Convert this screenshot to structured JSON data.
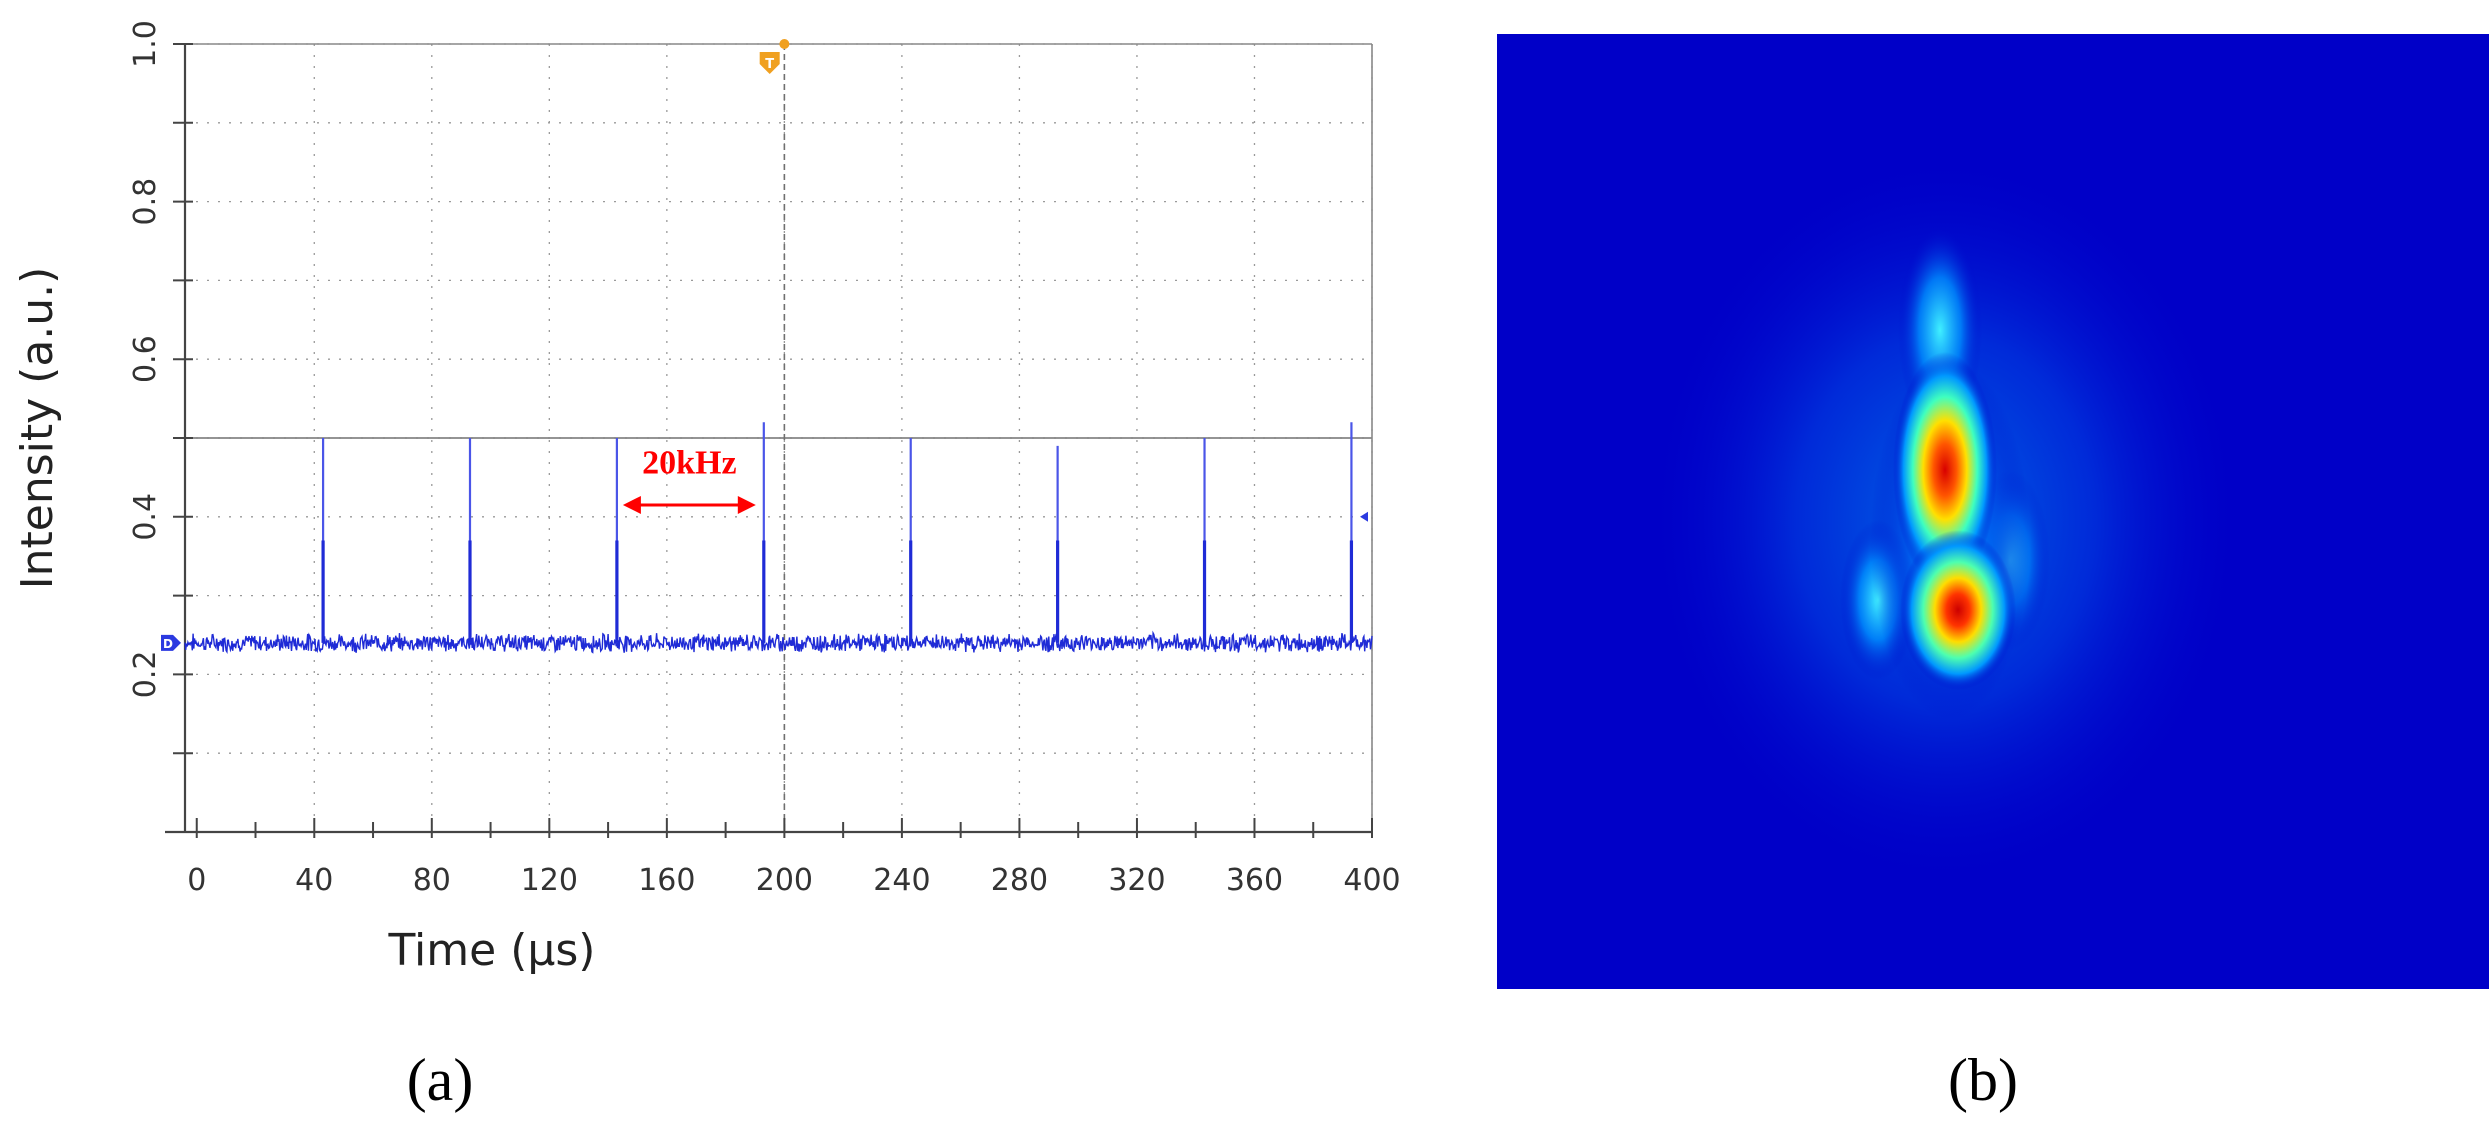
{
  "chart_data": [
    {
      "type": "line",
      "panel_label": "(a)",
      "xlabel": "Time (µs)",
      "ylabel": "Intensity (a.u.)",
      "xlim": [
        -4,
        400
      ],
      "ylim": [
        0.0,
        1.0
      ],
      "xticks": [
        "0",
        "40",
        "80",
        "120",
        "160",
        "200",
        "240",
        "280",
        "320",
        "360",
        "400"
      ],
      "xtick_values": [
        0,
        40,
        80,
        120,
        160,
        200,
        240,
        280,
        320,
        360,
        400
      ],
      "yticks": [
        "0.2",
        "0.4",
        "0.6",
        "0.8",
        "1.0"
      ],
      "ytick_values": [
        0.2,
        0.4,
        0.6,
        0.8,
        1.0
      ],
      "grid": true,
      "baseline": 0.24,
      "pulse_times": [
        43,
        93,
        143,
        193,
        243,
        293,
        343,
        393
      ],
      "pulse_peaks": [
        0.5,
        0.5,
        0.5,
        0.52,
        0.5,
        0.49,
        0.5,
        0.52
      ],
      "series_color": "#1f2bd6",
      "annotation": {
        "text": "20kHz",
        "x_from": 143,
        "x_to": 193,
        "y": 0.415,
        "color": "#ff0000"
      },
      "markers": {
        "trigger": "T",
        "channel": "D"
      }
    },
    {
      "type": "heatmap",
      "panel_label": "(b)",
      "colormap": "jet",
      "background_color": "#0000c8",
      "description_source": "beam intensity profile image"
    }
  ]
}
